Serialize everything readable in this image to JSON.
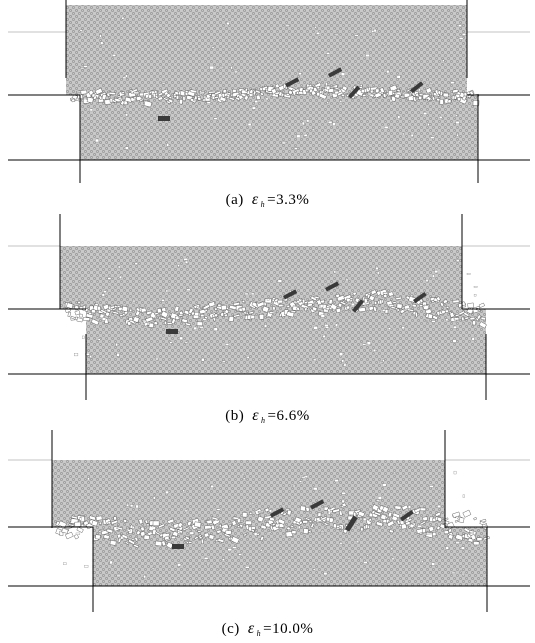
{
  "figure": {
    "panels": [
      {
        "id": "a",
        "label": "(a)",
        "symbol": "ε",
        "subscript": "h",
        "value": "=3.3%"
      },
      {
        "id": "b",
        "label": "(b)",
        "symbol": "ε",
        "subscript": "h",
        "value": "=6.6%"
      },
      {
        "id": "c",
        "label": "(c)",
        "symbol": "ε",
        "subscript": "h",
        "value": "=10.0%"
      }
    ],
    "colors": {
      "specimen_fill": "#c9c9c9",
      "texture": "#8a8a8a",
      "boundary_line": "#000000",
      "crack_white": "#ffffff",
      "dark_block": "#3a3a3a"
    }
  }
}
